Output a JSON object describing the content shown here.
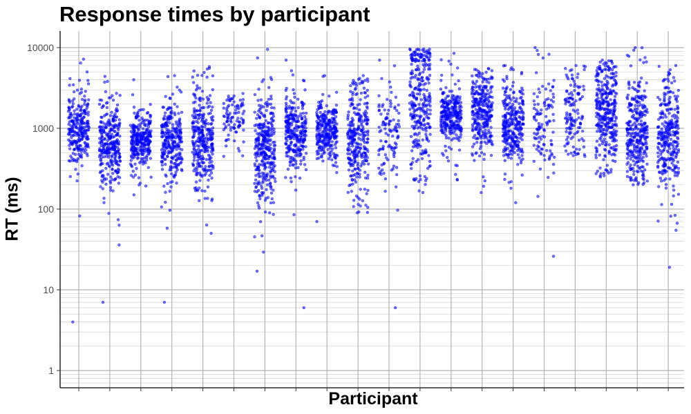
{
  "chart_data": {
    "type": "scatter",
    "title": "Response times by participant",
    "xlabel": "Participant",
    "ylabel": "RT (ms)",
    "y_scale": "log10",
    "ylim": [
      0.7,
      16000
    ],
    "y_ticks": [
      1,
      10,
      100,
      1000,
      10000
    ],
    "y_tick_labels": [
      "1",
      "10",
      "100",
      "1000",
      "10000"
    ],
    "x_tick_labels_shown": false,
    "grid": true,
    "legend": "none",
    "point_color": "#0000ff",
    "point_opacity": 0.55,
    "jitter": true,
    "n_participants": 20,
    "participants": [
      {
        "median": 1000,
        "q1": 750,
        "q3": 1550,
        "min": 4,
        "max": 7200,
        "n": 260
      },
      {
        "median": 600,
        "q1": 420,
        "q3": 900,
        "min": 7,
        "max": 4400,
        "n": 300
      },
      {
        "median": 720,
        "q1": 580,
        "q3": 950,
        "min": 150,
        "max": 4000,
        "n": 280
      },
      {
        "median": 700,
        "q1": 500,
        "q3": 1100,
        "min": 7,
        "max": 4500,
        "n": 270
      },
      {
        "median": 750,
        "q1": 550,
        "q3": 1400,
        "min": 50,
        "max": 5800,
        "n": 320
      },
      {
        "median": 1300,
        "q1": 1050,
        "q3": 1700,
        "min": 450,
        "max": 2700,
        "n": 90
      },
      {
        "median": 550,
        "q1": 330,
        "q3": 850,
        "min": 17,
        "max": 9500,
        "n": 330
      },
      {
        "median": 900,
        "q1": 680,
        "q3": 1400,
        "min": 6,
        "max": 7000,
        "n": 280
      },
      {
        "median": 950,
        "q1": 750,
        "q3": 1300,
        "min": 70,
        "max": 4500,
        "n": 280
      },
      {
        "median": 850,
        "q1": 600,
        "q3": 1900,
        "min": 90,
        "max": 4500,
        "n": 300
      },
      {
        "median": 850,
        "q1": 550,
        "q3": 1300,
        "min": 6,
        "max": 7000,
        "n": 110
      },
      {
        "median": 2500,
        "q1": 1200,
        "q3": 5500,
        "min": 160,
        "max": 9600,
        "n": 300
      },
      {
        "median": 1400,
        "q1": 1100,
        "q3": 1800,
        "min": 230,
        "max": 8500,
        "n": 280
      },
      {
        "median": 1600,
        "q1": 1100,
        "q3": 2300,
        "min": 160,
        "max": 5500,
        "n": 300
      },
      {
        "median": 1100,
        "q1": 800,
        "q3": 1700,
        "min": 120,
        "max": 6000,
        "n": 300
      },
      {
        "median": 1100,
        "q1": 650,
        "q3": 2000,
        "min": 26,
        "max": 10000,
        "n": 110
      },
      {
        "median": 1500,
        "q1": 900,
        "q3": 2600,
        "min": 450,
        "max": 6000,
        "n": 130
      },
      {
        "median": 1700,
        "q1": 1000,
        "q3": 2900,
        "min": 250,
        "max": 7000,
        "n": 340
      },
      {
        "median": 900,
        "q1": 650,
        "q3": 1800,
        "min": 200,
        "max": 10000,
        "n": 320
      },
      {
        "median": 800,
        "q1": 550,
        "q3": 1500,
        "min": 19,
        "max": 6000,
        "n": 300
      }
    ]
  }
}
